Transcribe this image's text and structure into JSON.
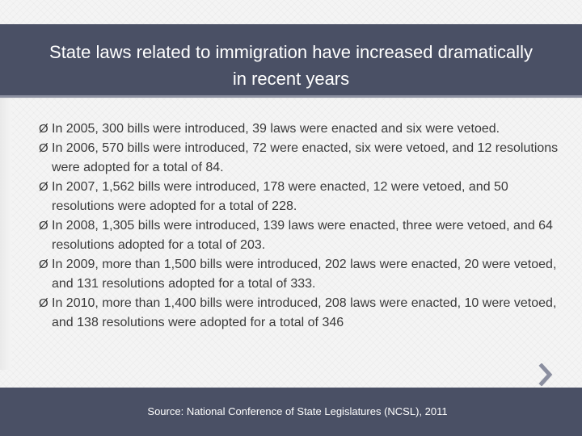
{
  "slide": {
    "title": "State laws related to immigration have increased dramatically in recent years",
    "bullet_marker": "Ø",
    "bullets": [
      "In 2005, 300 bills were introduced, 39 laws were enacted and six were vetoed.",
      "In 2006, 570 bills were introduced, 72 were enacted, six were vetoed, and 12 resolutions were adopted for a total of 84.",
      "In 2007, 1,562 bills were introduced, 178 were enacted, 12 were vetoed, and 50 resolutions were adopted for a total of 228.",
      "In 2008, 1,305 bills were introduced, 139 laws were enacted, three were vetoed, and 64 resolutions adopted for a total of 203.",
      "In 2009, more than 1,500 bills were introduced, 202 laws were enacted, 20 were vetoed, and 131 resolutions adopted for a total of 333.",
      "In 2010, more than 1,400 bills were introduced, 208 laws were enacted, 10 were vetoed, and 138 resolutions were adopted for a total of 346"
    ],
    "source": "Source: National Conference of State Legislatures (NCSL), 2011"
  },
  "icons": {
    "bullet": "arrowhead-bullet-icon",
    "next": "chevron-right-icon"
  },
  "colors": {
    "bar": "#4a5065",
    "background": "#f4f4f4",
    "text": "#3a3a3a",
    "title_text": "#ffffff",
    "chevron": "#8b8fa0"
  }
}
